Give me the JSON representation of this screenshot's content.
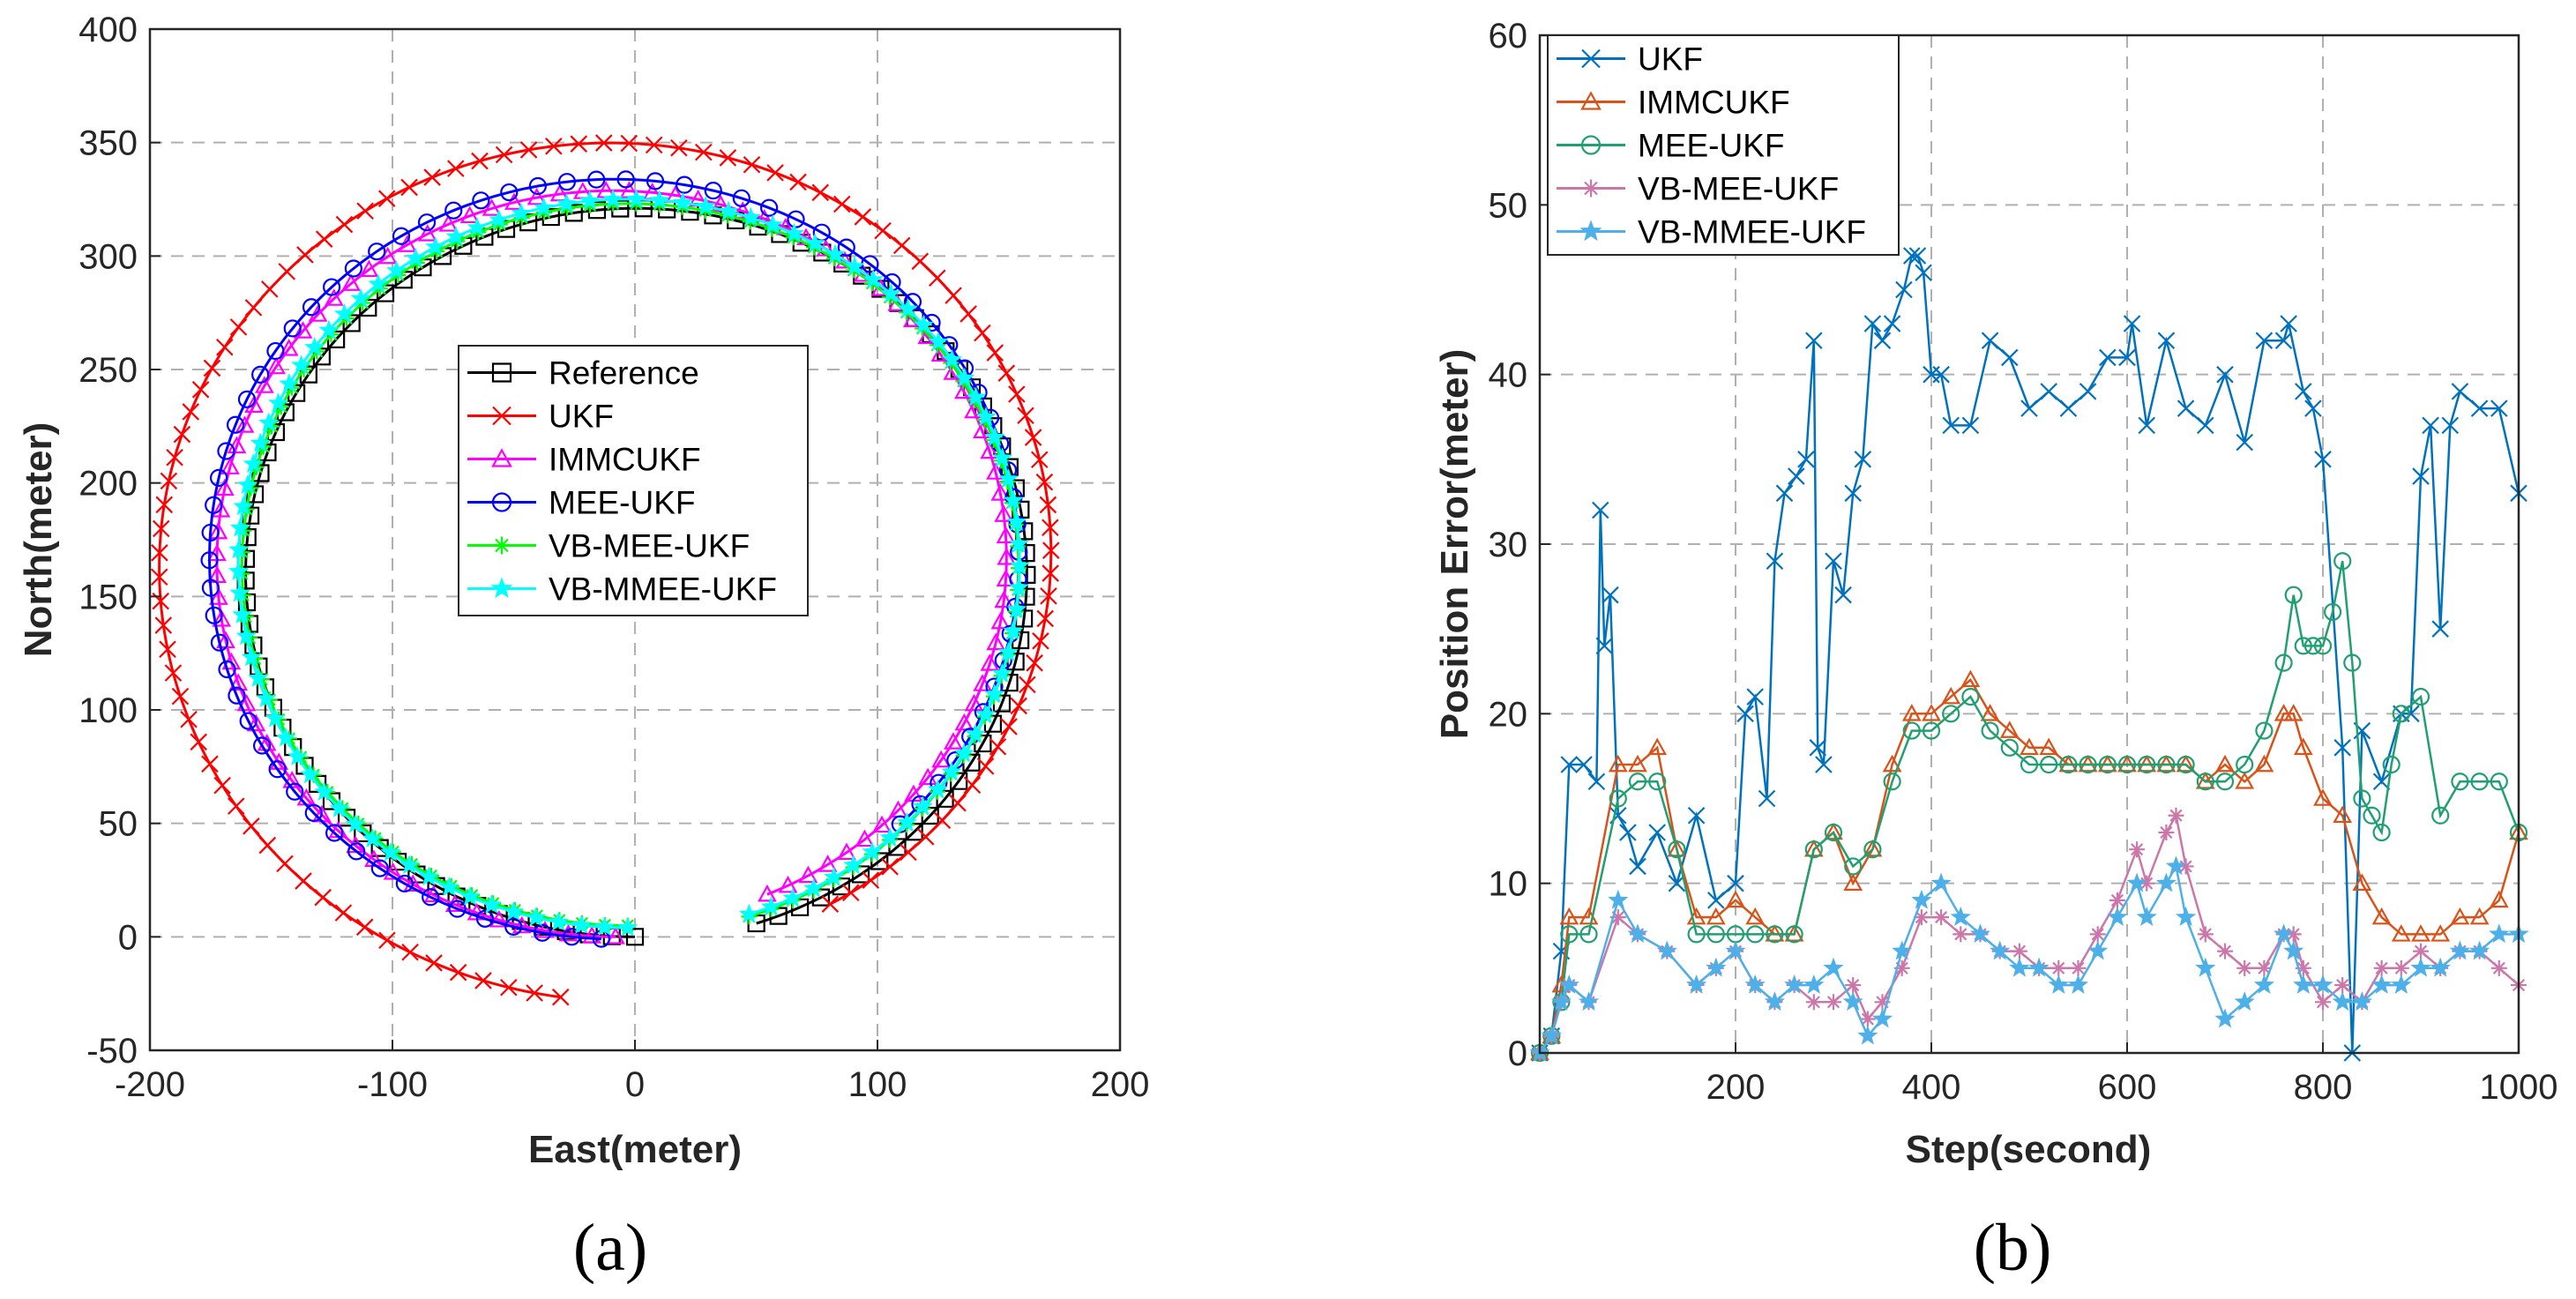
{
  "chart_data": [
    {
      "type": "line",
      "panel_label": "(a)",
      "xlabel": "East(meter)",
      "ylabel": "North(meter)",
      "xlim": [
        -200,
        200
      ],
      "ylim": [
        -50,
        400
      ],
      "xticks": [
        "-200",
        "-100",
        "0",
        "100",
        "200"
      ],
      "yticks": [
        "-50",
        "0",
        "50",
        "100",
        "150",
        "200",
        "250",
        "300",
        "350",
        "400"
      ],
      "grid": true,
      "legend_position": "center",
      "series": [
        {
          "name": "Reference",
          "color": "#000000",
          "marker": "square",
          "center": [
            0,
            160
          ],
          "radius": 160,
          "start_deg": 270,
          "end_deg": -72,
          "end_radius": 162
        },
        {
          "name": "UKF",
          "color": "#ff0000",
          "marker": "x",
          "center": [
            -7,
            166
          ],
          "radius": 194,
          "start_deg": 263,
          "end_deg": -60,
          "end_radius": 175
        },
        {
          "name": "IMMCUKF",
          "color": "#ff00ff",
          "marker": "triangle",
          "center": [
            -8,
            166
          ],
          "radius": 166,
          "start_deg": 270,
          "end_deg": -67,
          "end_radius": 160
        },
        {
          "name": "MEE-UKF",
          "color": "#0000ff",
          "marker": "circle",
          "center": [
            -8,
            167
          ],
          "radius": 168,
          "start_deg": 268,
          "end_deg": -45,
          "end_radius": 166
        },
        {
          "name": "VB-MEE-UKF",
          "color": "#00ff00",
          "marker": "asterisk",
          "center": [
            -3,
            163
          ],
          "radius": 158,
          "start_deg": 270,
          "end_deg": -72,
          "end_radius": 162
        },
        {
          "name": "VB-MMEE-UKF",
          "color": "#00ffff",
          "marker": "star",
          "center": [
            -3,
            164
          ],
          "radius": 160,
          "start_deg": 270,
          "end_deg": -72,
          "end_radius": 162
        }
      ]
    },
    {
      "type": "line",
      "panel_label": "(b)",
      "xlabel": "Step(second)",
      "ylabel": "Position Error(meter)",
      "xlim": [
        0,
        1000
      ],
      "ylim": [
        0,
        60
      ],
      "xticks": [
        "200",
        "400",
        "600",
        "800",
        "1000"
      ],
      "yticks": [
        "0",
        "10",
        "20",
        "30",
        "40",
        "50",
        "60"
      ],
      "grid": true,
      "legend_position": "top-left",
      "series": [
        {
          "name": "UKF",
          "color": "#0072bd",
          "marker": "x",
          "x": [
            0,
            12,
            22,
            30,
            45,
            58,
            62,
            66,
            72,
            80,
            90,
            100,
            120,
            140,
            160,
            180,
            200,
            210,
            220,
            232,
            240,
            250,
            262,
            272,
            280,
            284,
            290,
            300,
            310,
            320,
            330,
            340,
            350,
            360,
            372,
            380,
            386,
            392,
            400,
            410,
            420,
            440,
            460,
            480,
            500,
            520,
            540,
            560,
            580,
            600,
            605,
            620,
            640,
            660,
            680,
            700,
            720,
            740,
            760,
            765,
            780,
            790,
            800,
            820,
            830,
            840,
            860,
            880,
            890,
            900,
            910,
            920,
            930,
            940,
            960,
            980,
            1000
          ],
          "y": [
            0,
            1,
            6,
            17,
            17,
            16,
            32,
            24,
            27,
            14,
            13,
            11,
            13,
            10,
            14,
            9,
            10,
            20,
            21,
            15,
            29,
            33,
            34,
            35,
            42,
            18,
            17,
            29,
            27,
            33,
            35,
            43,
            42,
            43,
            45,
            47,
            47,
            46,
            40,
            40,
            37,
            37,
            42,
            41,
            38,
            39,
            38,
            39,
            41,
            41,
            43,
            37,
            42,
            38,
            37,
            40,
            36,
            42,
            42,
            43,
            39,
            38,
            35,
            18,
            0,
            19,
            16,
            20,
            20,
            34,
            37,
            25,
            37,
            39,
            38,
            38,
            33
          ]
        },
        {
          "name": "IMMCUKF",
          "color": "#d95319",
          "marker": "triangle",
          "x": [
            0,
            12,
            22,
            30,
            50,
            80,
            100,
            120,
            140,
            160,
            180,
            200,
            220,
            240,
            260,
            280,
            300,
            320,
            340,
            360,
            380,
            400,
            420,
            440,
            460,
            480,
            500,
            520,
            540,
            560,
            580,
            600,
            620,
            640,
            660,
            680,
            700,
            720,
            740,
            760,
            770,
            780,
            800,
            820,
            840,
            860,
            880,
            900,
            920,
            940,
            960,
            980,
            1000
          ],
          "y": [
            0,
            1,
            4,
            8,
            8,
            17,
            17,
            18,
            12,
            8,
            8,
            9,
            8,
            7,
            7,
            12,
            13,
            10,
            12,
            17,
            20,
            20,
            21,
            22,
            20,
            19,
            18,
            18,
            17,
            17,
            17,
            17,
            17,
            17,
            17,
            16,
            17,
            16,
            17,
            20,
            20,
            18,
            15,
            14,
            10,
            8,
            7,
            7,
            7,
            8,
            8,
            9,
            13
          ]
        },
        {
          "name": "MEE-UKF",
          "color": "#20a070",
          "marker": "circle",
          "x": [
            0,
            12,
            22,
            30,
            50,
            80,
            100,
            120,
            140,
            160,
            180,
            200,
            220,
            240,
            260,
            280,
            300,
            320,
            340,
            360,
            380,
            400,
            420,
            440,
            460,
            480,
            500,
            520,
            540,
            560,
            580,
            600,
            620,
            640,
            660,
            680,
            700,
            720,
            740,
            760,
            770,
            780,
            790,
            800,
            810,
            820,
            830,
            840,
            850,
            860,
            870,
            880,
            900,
            920,
            940,
            960,
            980,
            1000
          ],
          "y": [
            0,
            1,
            3,
            7,
            7,
            15,
            16,
            16,
            12,
            7,
            7,
            7,
            7,
            7,
            7,
            12,
            13,
            11,
            12,
            16,
            19,
            19,
            20,
            21,
            19,
            18,
            17,
            17,
            17,
            17,
            17,
            17,
            17,
            17,
            17,
            16,
            16,
            17,
            19,
            23,
            27,
            24,
            24,
            24,
            26,
            29,
            23,
            15,
            14,
            13,
            17,
            20,
            21,
            14,
            16,
            16,
            16,
            13
          ]
        },
        {
          "name": "VB-MEE-UKF",
          "color": "#cc77aa",
          "marker": "asterisk",
          "x": [
            0,
            12,
            22,
            30,
            50,
            80,
            100,
            130,
            160,
            180,
            200,
            220,
            240,
            260,
            280,
            300,
            320,
            335,
            350,
            370,
            390,
            410,
            430,
            450,
            470,
            490,
            510,
            530,
            550,
            570,
            590,
            610,
            620,
            640,
            650,
            660,
            680,
            700,
            720,
            740,
            760,
            770,
            780,
            800,
            820,
            840,
            860,
            880,
            900,
            920,
            940,
            960,
            980,
            1000
          ],
          "y": [
            0,
            1,
            3,
            4,
            3,
            8,
            7,
            6,
            4,
            5,
            6,
            4,
            3,
            4,
            3,
            3,
            4,
            2,
            3,
            5,
            8,
            8,
            7,
            7,
            6,
            6,
            5,
            5,
            5,
            7,
            9,
            12,
            10,
            13,
            14,
            11,
            7,
            6,
            5,
            5,
            7,
            7,
            5,
            3,
            4,
            3,
            5,
            5,
            6,
            5,
            6,
            6,
            5,
            4
          ]
        },
        {
          "name": "VB-MMEE-UKF",
          "color": "#4db0e8",
          "marker": "star",
          "x": [
            0,
            12,
            22,
            30,
            50,
            80,
            100,
            130,
            160,
            180,
            200,
            220,
            240,
            260,
            280,
            300,
            320,
            335,
            350,
            370,
            390,
            410,
            430,
            450,
            470,
            490,
            510,
            530,
            550,
            570,
            590,
            610,
            620,
            640,
            650,
            660,
            680,
            700,
            720,
            740,
            760,
            770,
            780,
            800,
            820,
            840,
            860,
            880,
            900,
            920,
            940,
            960,
            980,
            1000
          ],
          "y": [
            0,
            1,
            3,
            4,
            3,
            9,
            7,
            6,
            4,
            5,
            6,
            4,
            3,
            4,
            4,
            5,
            3,
            1,
            2,
            6,
            9,
            10,
            8,
            7,
            6,
            5,
            5,
            4,
            4,
            6,
            8,
            10,
            8,
            10,
            11,
            8,
            5,
            2,
            3,
            4,
            7,
            6,
            4,
            4,
            3,
            3,
            4,
            4,
            5,
            5,
            6,
            6,
            7,
            7
          ]
        }
      ]
    }
  ]
}
